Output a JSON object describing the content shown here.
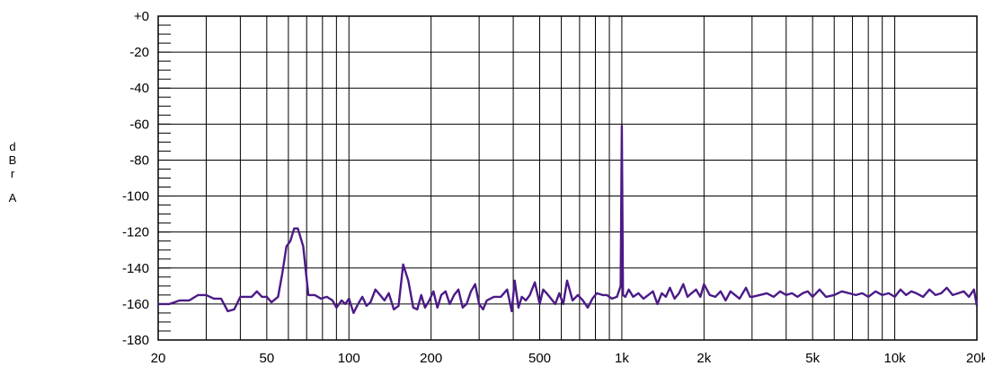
{
  "chart_data": {
    "type": "line",
    "title": "",
    "xlabel": "",
    "ylabel": "dBr A",
    "x_scale": "log",
    "xlim": [
      20,
      20000
    ],
    "ylim": [
      -180,
      0
    ],
    "grid": true,
    "x_ticks": [
      {
        "value": 20,
        "label": "20"
      },
      {
        "value": 50,
        "label": "50"
      },
      {
        "value": 100,
        "label": "100"
      },
      {
        "value": 200,
        "label": "200"
      },
      {
        "value": 500,
        "label": "500"
      },
      {
        "value": 1000,
        "label": "1k"
      },
      {
        "value": 2000,
        "label": "2k"
      },
      {
        "value": 5000,
        "label": "5k"
      },
      {
        "value": 10000,
        "label": "10k"
      },
      {
        "value": 20000,
        "label": "20k"
      }
    ],
    "x_gridlines": [
      20,
      30,
      40,
      50,
      60,
      70,
      80,
      90,
      100,
      200,
      300,
      400,
      500,
      600,
      700,
      800,
      900,
      1000,
      2000,
      3000,
      4000,
      5000,
      6000,
      7000,
      8000,
      9000,
      10000,
      20000
    ],
    "y_ticks": [
      {
        "value": 0,
        "label": "+0"
      },
      {
        "value": -20,
        "label": "-20"
      },
      {
        "value": -40,
        "label": "-40"
      },
      {
        "value": -60,
        "label": "-60"
      },
      {
        "value": -80,
        "label": "-80"
      },
      {
        "value": -100,
        "label": "-100"
      },
      {
        "value": -120,
        "label": "-120"
      },
      {
        "value": -140,
        "label": "-140"
      },
      {
        "value": -160,
        "label": "-160"
      },
      {
        "value": -180,
        "label": "-180"
      }
    ],
    "series": [
      {
        "color": "#4b1a87",
        "x": [
          20,
          22,
          24,
          26,
          28,
          30,
          32,
          34,
          36,
          38,
          40,
          42,
          44,
          46,
          48,
          50,
          52,
          55,
          57,
          59,
          61,
          63,
          65,
          68,
          71,
          75,
          79,
          83,
          87,
          90,
          94,
          97,
          100,
          104,
          108,
          112,
          116,
          120,
          125,
          130,
          135,
          140,
          146,
          152,
          158,
          165,
          172,
          178,
          184,
          190,
          197,
          204,
          211,
          218,
          226,
          234,
          243,
          252,
          261,
          270,
          280,
          290,
          300,
          310,
          320,
          340,
          360,
          380,
          395,
          405,
          418,
          430,
          445,
          460,
          480,
          500,
          515,
          530,
          550,
          570,
          590,
          610,
          630,
          660,
          690,
          720,
          750,
          780,
          810,
          850,
          880,
          920,
          960,
          990,
          1000,
          1010,
          1030,
          1060,
          1100,
          1150,
          1200,
          1250,
          1300,
          1350,
          1400,
          1450,
          1500,
          1560,
          1620,
          1680,
          1740,
          1800,
          1870,
          1940,
          2000,
          2100,
          2200,
          2300,
          2400,
          2500,
          2600,
          2700,
          2850,
          2950,
          3000,
          3200,
          3400,
          3600,
          3800,
          4000,
          4200,
          4400,
          4600,
          4800,
          5000,
          5300,
          5600,
          6000,
          6400,
          6800,
          7200,
          7600,
          8000,
          8500,
          9000,
          9500,
          10000,
          10500,
          11000,
          11500,
          12000,
          12700,
          13400,
          14100,
          14800,
          15500,
          16300,
          17100,
          17900,
          18700,
          19500,
          20000
        ],
        "y": [
          -160,
          -160,
          -158,
          -158,
          -155,
          -155,
          -157,
          -157,
          -164,
          -163,
          -156,
          -156,
          -156,
          -153,
          -156,
          -156,
          -159,
          -156,
          -143,
          -128,
          -125,
          -118,
          -118,
          -128,
          -155,
          -155,
          -157,
          -156,
          -158,
          -162,
          -158,
          -160,
          -157,
          -165,
          -160,
          -156,
          -161,
          -159,
          -152,
          -155,
          -158,
          -154,
          -163,
          -161,
          -138,
          -147,
          -162,
          -163,
          -155,
          -162,
          -158,
          -153,
          -162,
          -155,
          -153,
          -160,
          -155,
          -152,
          -162,
          -160,
          -153,
          -149,
          -160,
          -163,
          -158,
          -156,
          -156,
          -152,
          -164,
          -147,
          -162,
          -156,
          -158,
          -155,
          -148,
          -160,
          -152,
          -154,
          -157,
          -160,
          -154,
          -160,
          -147,
          -158,
          -155,
          -158,
          -162,
          -157,
          -154,
          -155,
          -155,
          -157,
          -156,
          -150,
          -61,
          -155,
          -156,
          -152,
          -156,
          -154,
          -157,
          -155,
          -153,
          -160,
          -154,
          -156,
          -151,
          -157,
          -154,
          -149,
          -156,
          -154,
          -152,
          -156,
          -149,
          -155,
          -156,
          -153,
          -158,
          -153,
          -155,
          -157,
          -151,
          -156,
          -156,
          -155,
          -154,
          -156,
          -153,
          -155,
          -154,
          -156,
          -154,
          -153,
          -156,
          -152,
          -156,
          -155,
          -153,
          -154,
          -155,
          -154,
          -156,
          -153,
          -155,
          -154,
          -156,
          -152,
          -155,
          -153,
          -154,
          -156,
          -152,
          -155,
          -154,
          -151,
          -155,
          -154,
          -153,
          -156,
          -152,
          -161
        ]
      }
    ]
  }
}
